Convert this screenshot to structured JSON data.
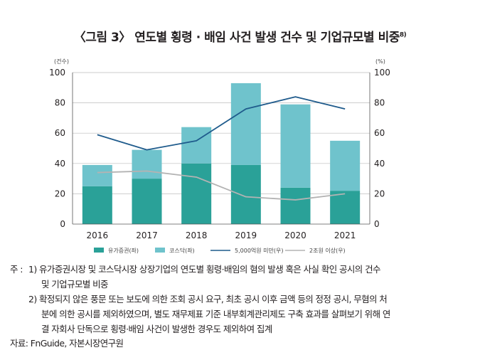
{
  "title": {
    "text": "〈그림 3〉 연도별 횡령 · 배임 사건 발생 건수 및 기업규모별 비중",
    "footnote": "8)"
  },
  "chart_data": {
    "type": "bar",
    "stacked": true,
    "categories": [
      "2016",
      "2017",
      "2018",
      "2019",
      "2020",
      "2021"
    ],
    "left_axis": {
      "unit": "(건수)",
      "ylim": [
        0,
        100
      ],
      "ticks": [
        0,
        20,
        40,
        60,
        80,
        100
      ]
    },
    "right_axis": {
      "unit": "(%)",
      "ylim": [
        0,
        100
      ],
      "ticks": [
        0,
        20,
        40,
        60,
        80,
        100
      ]
    },
    "series": [
      {
        "name": "유가증권(좌)",
        "kind": "bar",
        "axis": "left",
        "color": "#2aa198",
        "values": [
          25,
          30,
          40,
          39,
          24,
          22
        ]
      },
      {
        "name": "코스닥(좌)",
        "kind": "bar",
        "axis": "left",
        "color": "#6fc3cc",
        "values": [
          14,
          19,
          24,
          54,
          55,
          33
        ]
      },
      {
        "name": "5,000억원 미만(우)",
        "kind": "line",
        "axis": "right",
        "color": "#1f5b8c",
        "values": [
          59,
          49,
          55,
          76,
          84,
          76
        ]
      },
      {
        "name": "2조원 이상(우)",
        "kind": "line",
        "axis": "right",
        "color": "#b3b3b3",
        "values": [
          34,
          35,
          31,
          18,
          16,
          20
        ]
      }
    ]
  },
  "notes": {
    "prefix": "주 :",
    "items": [
      {
        "marker": "1)",
        "lines": [
          "유가증권시장 및 코스닥시장 상장기업의 연도별 횡령·배임의 혐의 발생 혹은 사실 확인 공시의 건수",
          "및 기업규모별 비중"
        ]
      },
      {
        "marker": "2)",
        "lines": [
          "확정되지 않은 풍문 또는 보도에 의한 조회 공시 요구, 최초 공시 이후 금액 등의 정정 공시, 무혐의 처",
          "분에 의한 공시를 제외하였으며, 별도 재무제표 기준 내부회계관리제도 구축 효과를 살펴보기 위해 연",
          "결 자회사 단독으로 횡령·배임 사건이 발생한 경우도 제외하여 집계"
        ]
      }
    ]
  },
  "source": "자료: FnGuide, 자본시장연구원"
}
